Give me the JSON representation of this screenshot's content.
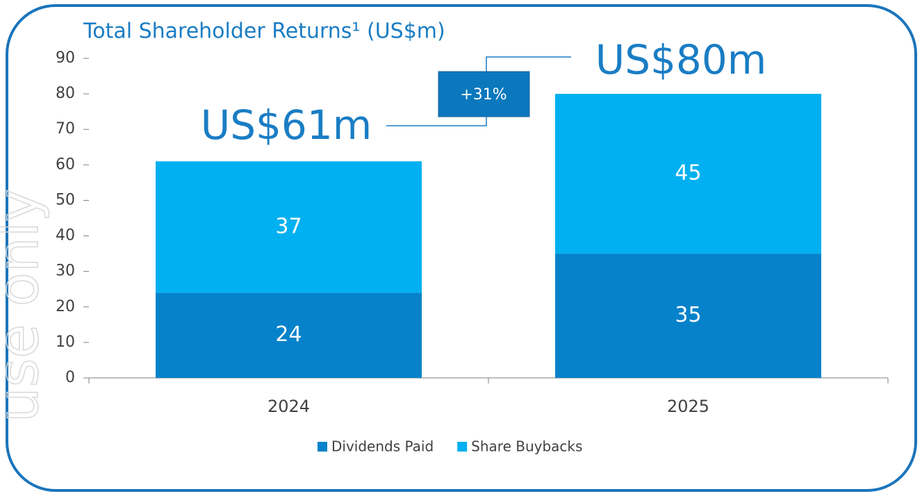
{
  "chart_data": {
    "type": "stacked_bar",
    "title": "Total Shareholder Returns¹ (US$m)",
    "watermark": "use only",
    "categories": [
      "2024",
      "2025"
    ],
    "series": [
      {
        "name": "Dividends Paid",
        "color": "#0582ca",
        "values": [
          24,
          35
        ]
      },
      {
        "name": "Share Buybacks",
        "color": "#00b0f0",
        "values": [
          37,
          45
        ]
      }
    ],
    "ylim": [
      0,
      90
    ],
    "yticks": [
      0,
      10,
      20,
      30,
      40,
      50,
      60,
      70,
      80,
      90
    ],
    "annotations": [
      "US$61m",
      "US$80m",
      "+31%"
    ],
    "legend": "bottom"
  }
}
